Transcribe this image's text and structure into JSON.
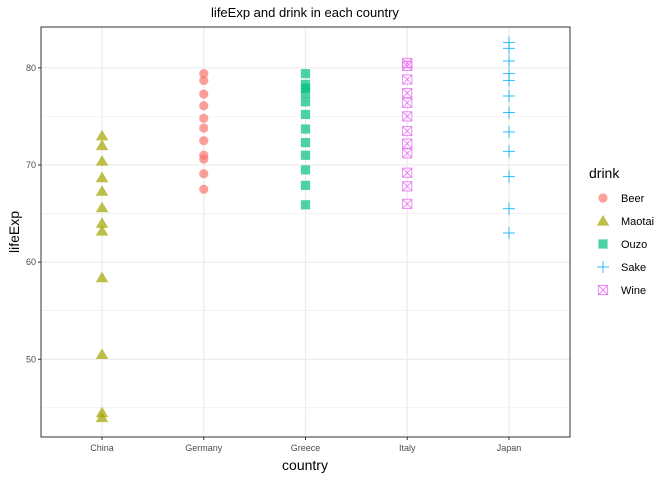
{
  "chart_data": {
    "type": "scatter",
    "title": "lifeExp and drink in each country",
    "xlabel": "country",
    "ylabel": "lifeExp",
    "categories": [
      "China",
      "Germany",
      "Greece",
      "Italy",
      "Japan"
    ],
    "ylim": [
      42.0,
      84.2
    ],
    "yticks": [
      50,
      60,
      70,
      80
    ],
    "grid": true,
    "legend": {
      "title": "drink",
      "placement": "right",
      "entries": [
        "Beer",
        "Maotai",
        "Ouzo",
        "Sake",
        "Wine"
      ]
    },
    "series": [
      {
        "name": "Maotai",
        "category": "China",
        "color": "#A3A500",
        "shape": "triangle",
        "values": [
          44.0,
          44.5,
          50.5,
          58.4,
          63.2,
          64.0,
          65.6,
          67.3,
          68.7,
          70.4,
          72.0,
          73.0
        ]
      },
      {
        "name": "Beer",
        "category": "Germany",
        "color": "#F8766D",
        "shape": "circle",
        "values": [
          67.5,
          69.1,
          70.6,
          71.0,
          72.5,
          73.8,
          74.8,
          76.1,
          77.3,
          78.7,
          79.4
        ]
      },
      {
        "name": "Ouzo",
        "category": "Greece",
        "color": "#00BF7D",
        "shape": "square",
        "values": [
          65.9,
          67.9,
          69.5,
          71.0,
          72.3,
          73.7,
          75.2,
          76.5,
          77.4,
          77.9,
          78.3,
          79.4
        ]
      },
      {
        "name": "Wine",
        "category": "Italy",
        "color": "#E76BF3",
        "shape": "boxx",
        "values": [
          66.0,
          67.8,
          69.2,
          71.2,
          72.2,
          73.5,
          75.0,
          76.4,
          77.4,
          78.8,
          80.2,
          80.5
        ]
      },
      {
        "name": "Sake",
        "category": "Japan",
        "color": "#00B0F6",
        "shape": "plus",
        "values": [
          63.0,
          65.5,
          68.8,
          71.4,
          73.4,
          75.4,
          77.1,
          78.7,
          79.4,
          80.7,
          82.0,
          82.6
        ]
      }
    ]
  }
}
